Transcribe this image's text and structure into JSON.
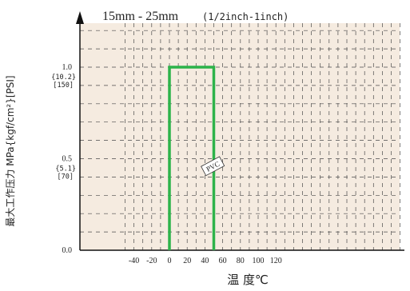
{
  "chart_data": {
    "type": "line",
    "title": "15mm - 25mm",
    "subtitle": "(1/2inch-1inch)",
    "xlabel": "温 度℃",
    "ylabel": "最大工作压力 MPa{kgf/cm²}[PSI]",
    "xlim": [
      -50,
      130
    ],
    "ylim": [
      0,
      1.2
    ],
    "x_ticks": [
      -40,
      -20,
      0,
      20,
      40,
      60,
      80,
      100,
      120
    ],
    "y_ticks": [
      {
        "value": 0.0,
        "label": "0.0",
        "sub1": "",
        "sub2": ""
      },
      {
        "value": 0.5,
        "label": "0.5",
        "sub1": "{5.1}",
        "sub2": "[70]"
      },
      {
        "value": 1.0,
        "label": "1.0",
        "sub1": "{10.2}",
        "sub2": "[150]"
      }
    ],
    "grid": true,
    "background_color": "#f5ebe0",
    "series": [
      {
        "name": "PVC",
        "color": "#2db34a",
        "points": [
          [
            0,
            0
          ],
          [
            0,
            1.0
          ],
          [
            50,
            1.0
          ],
          [
            50,
            0
          ]
        ]
      }
    ],
    "annotations": [
      {
        "text": "PVC",
        "x": 40,
        "y": 0.44
      }
    ]
  }
}
